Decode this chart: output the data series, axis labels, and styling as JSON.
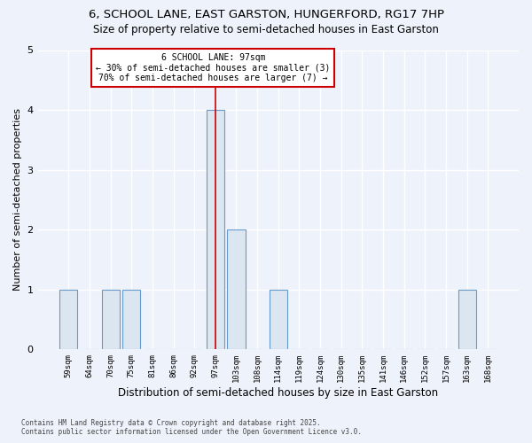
{
  "title_line1": "6, SCHOOL LANE, EAST GARSTON, HUNGERFORD, RG17 7HP",
  "title_line2": "Size of property relative to semi-detached houses in East Garston",
  "xlabel": "Distribution of semi-detached houses by size in East Garston",
  "ylabel": "Number of semi-detached properties",
  "categories": [
    "59sqm",
    "64sqm",
    "70sqm",
    "75sqm",
    "81sqm",
    "86sqm",
    "92sqm",
    "97sqm",
    "103sqm",
    "108sqm",
    "114sqm",
    "119sqm",
    "124sqm",
    "130sqm",
    "135sqm",
    "141sqm",
    "146sqm",
    "152sqm",
    "157sqm",
    "163sqm",
    "168sqm"
  ],
  "values": [
    1,
    0,
    1,
    1,
    0,
    0,
    0,
    4,
    2,
    0,
    1,
    0,
    0,
    0,
    0,
    0,
    0,
    0,
    0,
    1,
    0
  ],
  "highlight_index": 7,
  "bar_color": "#dce6f1",
  "bar_edge_color": "#6699cc",
  "highlight_line_color": "#cc0000",
  "ylim": [
    0,
    5
  ],
  "yticks": [
    0,
    1,
    2,
    3,
    4,
    5
  ],
  "annotation_title": "6 SCHOOL LANE: 97sqm",
  "annotation_line1": "← 30% of semi-detached houses are smaller (3)",
  "annotation_line2": "70% of semi-detached houses are larger (7) →",
  "footer_line1": "Contains HM Land Registry data © Crown copyright and database right 2025.",
  "footer_line2": "Contains public sector information licensed under the Open Government Licence v3.0.",
  "bg_color": "#eef2fa",
  "grid_color": "#ffffff"
}
